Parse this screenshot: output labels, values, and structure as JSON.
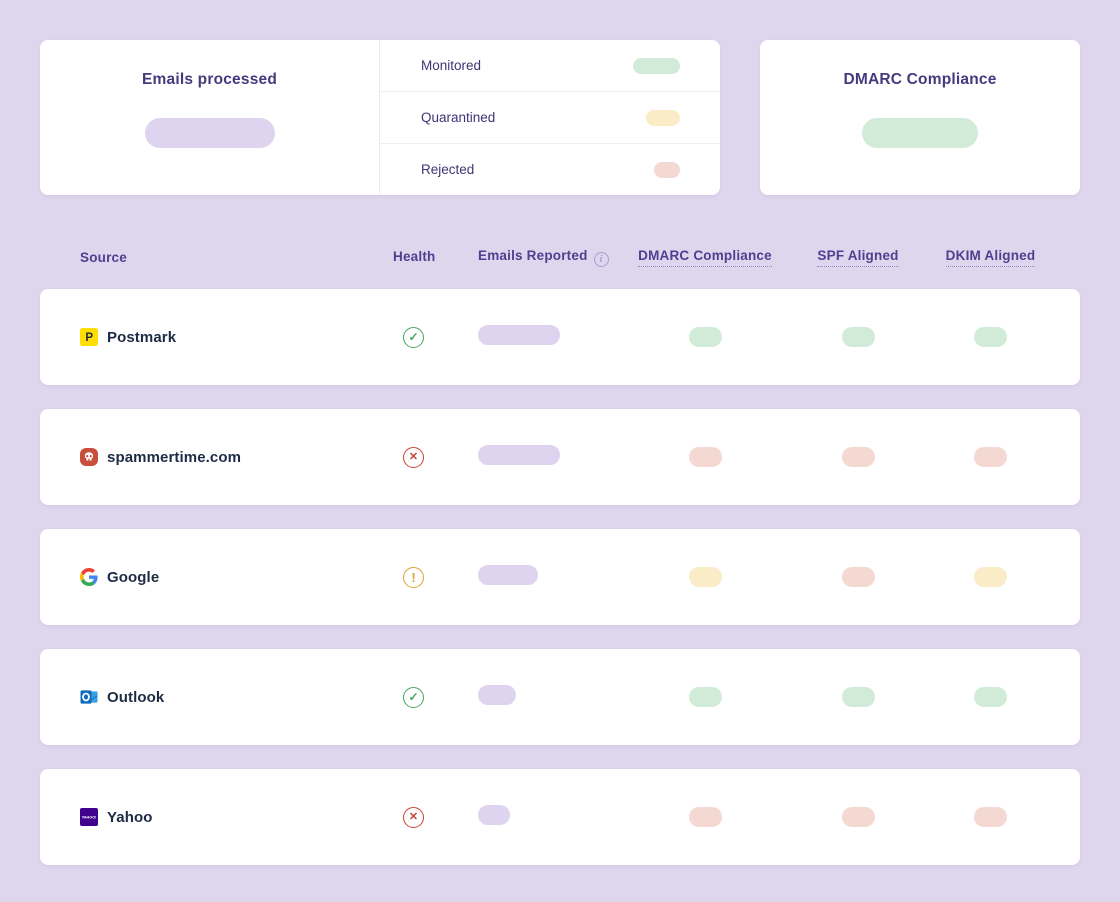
{
  "page": {
    "background": "#ddd6ed"
  },
  "colors": {
    "monitored_green": "#d2ebd8",
    "quarantined_yellow": "#f9ecc6",
    "rejected_red": "#f4d8d2",
    "neutral_purple": "#ded4ef",
    "health_ok": "#43a860",
    "health_error": "#c54434",
    "health_warn": "#dfa02f",
    "title_purple": "#443a7e"
  },
  "cards": {
    "emails_processed": {
      "title": "Emails processed",
      "pill_status": "neutral",
      "pill_width": 130
    },
    "dmarc_compliance": {
      "title": "DMARC Compliance",
      "pill_status": "ok",
      "pill_width": 116
    },
    "legend": [
      {
        "label": "Monitored",
        "status": "ok",
        "pill_width": 47
      },
      {
        "label": "Quarantined",
        "status": "warn",
        "pill_width": 34
      },
      {
        "label": "Rejected",
        "status": "error",
        "pill_width": 26
      }
    ]
  },
  "table": {
    "headers": {
      "source": "Source",
      "health": "Health",
      "emails_reported": "Emails Reported",
      "emails_reported_info": "info-icon",
      "dmarc": "DMARC Compliance",
      "spf": "SPF Aligned",
      "dkim": "DKIM Aligned"
    },
    "rows": [
      {
        "source": "Postmark",
        "icon": "postmark-icon",
        "health": "ok",
        "emails_pill_width": 82,
        "dmarc": "ok",
        "spf": "ok",
        "dkim": "ok"
      },
      {
        "source": "spammertime.com",
        "icon": "spammer-skull-icon",
        "health": "error",
        "emails_pill_width": 82,
        "dmarc": "error",
        "spf": "error",
        "dkim": "error"
      },
      {
        "source": "Google",
        "icon": "google-icon",
        "health": "warn",
        "emails_pill_width": 60,
        "dmarc": "warn",
        "spf": "error",
        "dkim": "warn"
      },
      {
        "source": "Outlook",
        "icon": "outlook-icon",
        "health": "ok",
        "emails_pill_width": 38,
        "dmarc": "ok",
        "spf": "ok",
        "dkim": "ok"
      },
      {
        "source": "Yahoo",
        "icon": "yahoo-icon",
        "health": "error",
        "emails_pill_width": 32,
        "dmarc": "error",
        "spf": "error",
        "dkim": "error"
      }
    ]
  }
}
